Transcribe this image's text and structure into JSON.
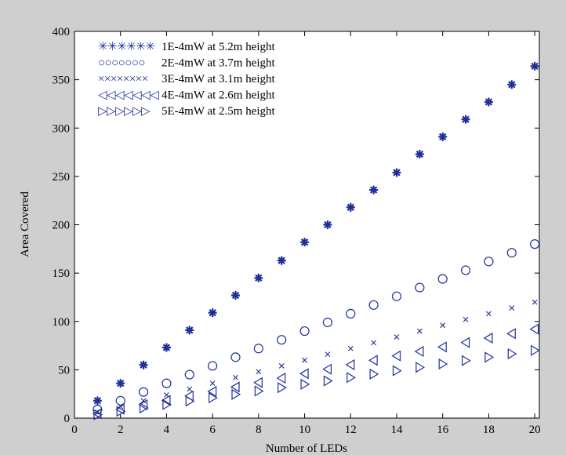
{
  "chart_data": {
    "type": "scatter",
    "title": "",
    "xlabel": "Number of LEDs",
    "ylabel": "Area Covered",
    "xlim": [
      0,
      20.2
    ],
    "ylim": [
      0,
      400
    ],
    "xticks": [
      0,
      2,
      4,
      6,
      8,
      10,
      12,
      14,
      16,
      18,
      20
    ],
    "yticks": [
      0,
      50,
      100,
      150,
      200,
      250,
      300,
      350,
      400
    ],
    "grid": false,
    "legend_placement": "top-left",
    "x": [
      1,
      2,
      3,
      4,
      5,
      6,
      7,
      8,
      9,
      10,
      11,
      12,
      13,
      14,
      15,
      16,
      17,
      18,
      19,
      20
    ],
    "series": [
      {
        "name": "1E-4mW at 5.2m height",
        "marker": "asterisk",
        "legend_markers": "✳✳✳✳✳✳",
        "color": "#1f2f9a",
        "values": [
          18,
          36,
          55,
          73,
          91,
          109,
          127,
          145,
          163,
          182,
          200,
          218,
          236,
          254,
          273,
          291,
          309,
          327,
          345,
          364
        ]
      },
      {
        "name": "2E-4mW at 3.7m height",
        "marker": "circle",
        "legend_markers": "○○○○○○○",
        "color": "#1f2f9a",
        "values": [
          9,
          18,
          27,
          36,
          45,
          54,
          63,
          72,
          81,
          90,
          99,
          108,
          117,
          126,
          135,
          144,
          153,
          162,
          171,
          180
        ]
      },
      {
        "name": "3E-4mW at 3.1m height",
        "marker": "x",
        "legend_markers": "××××××××",
        "color": "#1f2f9a",
        "values": [
          6,
          12,
          18,
          24,
          30,
          36,
          42,
          48,
          54,
          60,
          66,
          72,
          78,
          84,
          90,
          96,
          102,
          108,
          114,
          120
        ]
      },
      {
        "name": "4E-4mW at 2.6m height",
        "marker": "triangle-left",
        "legend_markers": "◁◁◁◁◁◁◁",
        "color": "#1f2f9a",
        "values": [
          4.6,
          9.2,
          13.8,
          18.4,
          23,
          27.6,
          32.2,
          36.8,
          41.4,
          46,
          50.6,
          55.2,
          59.8,
          64.4,
          69,
          73.6,
          78.2,
          82.8,
          87.4,
          92
        ]
      },
      {
        "name": "5E-4mW at 2.5m height",
        "marker": "triangle-right",
        "legend_markers": "▷▷▷▷▷▷",
        "color": "#1f2f9a",
        "values": [
          3.5,
          7,
          10.5,
          14,
          17.5,
          21,
          24.5,
          28,
          31.5,
          35,
          38.5,
          42,
          45.5,
          49,
          52.5,
          56,
          59.5,
          63,
          66.5,
          70
        ]
      }
    ]
  }
}
